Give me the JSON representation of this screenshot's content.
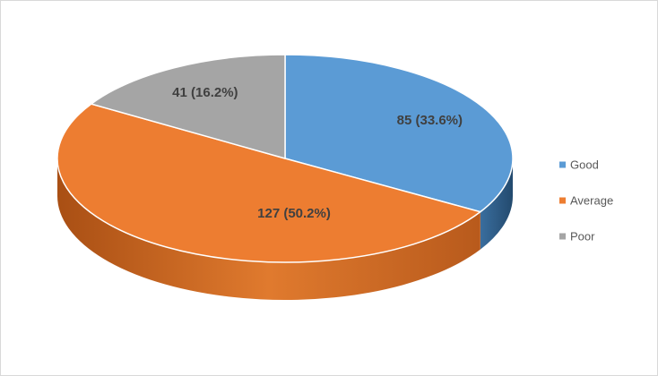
{
  "chart_data": {
    "type": "pie",
    "variant": "3d",
    "title": "",
    "legend_position": "right",
    "slices": [
      {
        "label": "Good",
        "value": 85,
        "percent": 33.6,
        "data_label": "85 (33.6%)",
        "color": "#5B9BD5",
        "side_color": "#2E5B86"
      },
      {
        "label": "Average",
        "value": 127,
        "percent": 50.2,
        "data_label": "127 (50.2%)",
        "color": "#ED7D31",
        "side_color": "#B85A1C"
      },
      {
        "label": "Poor",
        "value": 41,
        "percent": 16.2,
        "data_label": "41 (16.2%)",
        "color": "#A5A5A5",
        "side_color": "#7A7A7A"
      }
    ]
  }
}
